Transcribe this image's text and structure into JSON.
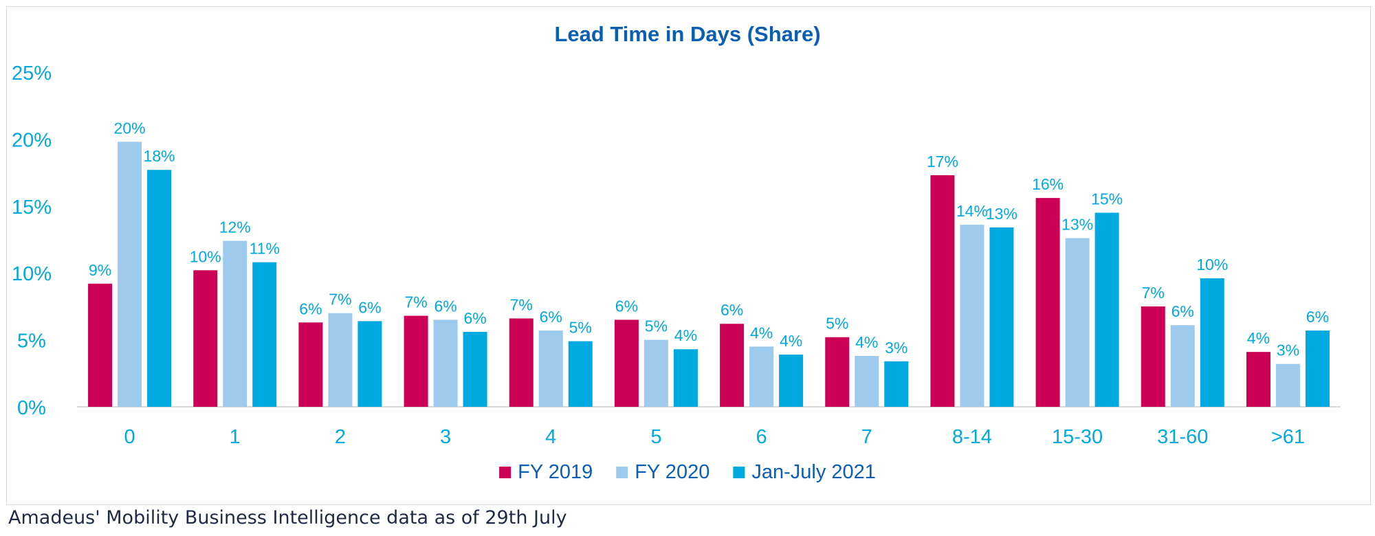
{
  "chart_data": {
    "type": "bar",
    "title": "Lead Time in Days (Share)",
    "categories": [
      "0",
      "1",
      "2",
      "3",
      "4",
      "5",
      "6",
      "7",
      "8-14",
      "15-30",
      "31-60",
      ">61"
    ],
    "series": [
      {
        "name": "FY 2019",
        "color": "#cc0055",
        "values": [
          9.2,
          10.2,
          6.3,
          6.8,
          6.6,
          6.5,
          6.2,
          5.2,
          17.3,
          15.6,
          7.5,
          4.1
        ],
        "labels": [
          "9%",
          "10%",
          "6%",
          "7%",
          "7%",
          "6%",
          "6%",
          "5%",
          "17%",
          "16%",
          "7%",
          "4%"
        ]
      },
      {
        "name": "FY 2020",
        "color": "#9ecbed",
        "values": [
          19.8,
          12.4,
          7.0,
          6.5,
          5.7,
          5.0,
          4.5,
          3.8,
          13.6,
          12.6,
          6.1,
          3.2
        ],
        "labels": [
          "20%",
          "12%",
          "7%",
          "6%",
          "6%",
          "5%",
          "4%",
          "4%",
          "14%",
          "13%",
          "6%",
          "3%"
        ]
      },
      {
        "name": "Jan-July 2021",
        "color": "#00a9e0",
        "values": [
          17.7,
          10.8,
          6.4,
          5.6,
          4.9,
          4.3,
          3.9,
          3.4,
          13.4,
          14.5,
          9.6,
          5.7
        ],
        "labels": [
          "18%",
          "11%",
          "6%",
          "6%",
          "5%",
          "4%",
          "4%",
          "3%",
          "13%",
          "15%",
          "10%",
          "6%"
        ]
      }
    ],
    "ylim": [
      0,
      25
    ],
    "yticks": [
      0,
      5,
      10,
      15,
      20,
      25
    ],
    "ytick_labels": [
      "0%",
      "5%",
      "10%",
      "15%",
      "20%",
      "25%"
    ],
    "grid": false,
    "legend_position": "bottom",
    "title_color": "#0a5fb4",
    "label_color": "#00a9e0",
    "axis_color": "#d9d9d9"
  },
  "footer": {
    "source_text": "Amadeus' Mobility Business Intelligence data as of 29th July"
  }
}
